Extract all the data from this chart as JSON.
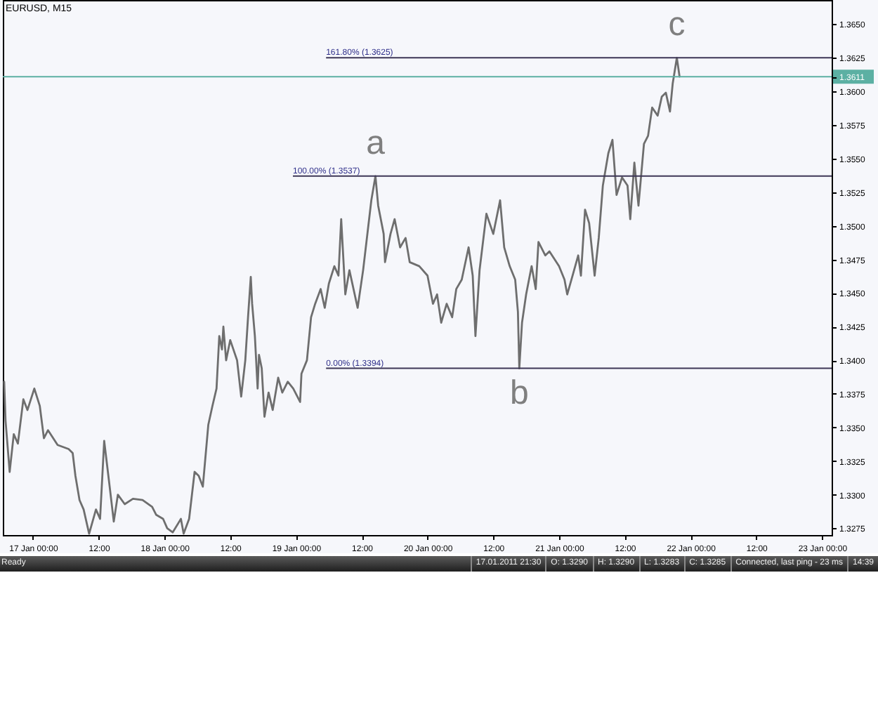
{
  "chart_data": {
    "type": "line",
    "title": "EURUSD, M15",
    "color": "#6e6e6e",
    "x": [
      "2011-01-16T18:45",
      "2011-01-16T19:00",
      "2011-01-16T19:45",
      "2011-01-16T20:30",
      "2011-01-16T21:15",
      "2011-01-16T22:15",
      "2011-01-16T23:00",
      "2011-01-17T00:15",
      "2011-01-17T01:15",
      "2011-01-17T02:00",
      "2011-01-17T02:45",
      "2011-01-17T04:30",
      "2011-01-17T06:30",
      "2011-01-17T07:15",
      "2011-01-17T07:45",
      "2011-01-17T08:30",
      "2011-01-17T09:15",
      "2011-01-17T10:15",
      "2011-01-17T11:30",
      "2011-01-17T12:15",
      "2011-01-17T13:00",
      "2011-01-17T14:00",
      "2011-01-17T14:45",
      "2011-01-17T15:30",
      "2011-01-17T16:45",
      "2011-01-17T18:15",
      "2011-01-17T20:00",
      "2011-01-17T21:45",
      "2011-01-17T22:30",
      "2011-01-17T23:45",
      "2011-01-18T00:30",
      "2011-01-18T01:30",
      "2011-01-18T03:00",
      "2011-01-18T03:30",
      "2011-01-18T04:30",
      "2011-01-18T05:30",
      "2011-01-18T06:15",
      "2011-01-18T07:00",
      "2011-01-18T08:00",
      "2011-01-18T08:45",
      "2011-01-18T09:30",
      "2011-01-18T10:00",
      "2011-01-18T10:30",
      "2011-01-18T10:45",
      "2011-01-18T11:15",
      "2011-01-18T12:00",
      "2011-01-18T13:15",
      "2011-01-18T14:00",
      "2011-01-18T14:45",
      "2011-01-18T15:15",
      "2011-01-18T15:45",
      "2011-01-18T16:00",
      "2011-01-18T16:30",
      "2011-01-18T17:00",
      "2011-01-18T17:15",
      "2011-01-18T17:45",
      "2011-01-18T18:15",
      "2011-01-18T19:00",
      "2011-01-18T19:45",
      "2011-01-18T20:45",
      "2011-01-18T21:30",
      "2011-01-18T22:30",
      "2011-01-18T23:30",
      "2011-01-19T00:45",
      "2011-01-19T01:00",
      "2011-01-19T02:00",
      "2011-01-19T02:45",
      "2011-01-19T03:30",
      "2011-01-19T04:30",
      "2011-01-19T05:15",
      "2011-01-19T06:00",
      "2011-01-19T07:00",
      "2011-01-19T07:45",
      "2011-01-19T08:15",
      "2011-01-19T09:00",
      "2011-01-19T09:45",
      "2011-01-19T11:15",
      "2011-01-19T12:15",
      "2011-01-19T13:45",
      "2011-01-19T14:30",
      "2011-01-19T15:00",
      "2011-01-19T16:00",
      "2011-01-19T16:15",
      "2011-01-19T17:15",
      "2011-01-19T18:00",
      "2011-01-19T19:00",
      "2011-01-19T20:00",
      "2011-01-19T20:45",
      "2011-01-19T22:30",
      "2011-01-20T00:00",
      "2011-01-20T01:00",
      "2011-01-20T01:45",
      "2011-01-20T02:30",
      "2011-01-20T03:30",
      "2011-01-20T04:30",
      "2011-01-20T05:15",
      "2011-01-20T06:15",
      "2011-01-20T07:30",
      "2011-01-20T08:15",
      "2011-01-20T08:45",
      "2011-01-20T09:30",
      "2011-01-20T10:45",
      "2011-01-20T12:00",
      "2011-01-20T13:15",
      "2011-01-20T14:00",
      "2011-01-20T15:00",
      "2011-01-20T16:00",
      "2011-01-20T16:30",
      "2011-01-20T16:45",
      "2011-01-20T17:15",
      "2011-01-20T18:00",
      "2011-01-20T19:00",
      "2011-01-20T19:45",
      "2011-01-20T20:15",
      "2011-01-20T21:30",
      "2011-01-20T22:15",
      "2011-01-21T00:00",
      "2011-01-21T01:00",
      "2011-01-21T01:30",
      "2011-01-21T02:45",
      "2011-01-21T03:30",
      "2011-01-21T04:00",
      "2011-01-21T04:45",
      "2011-01-21T05:30",
      "2011-01-21T06:30",
      "2011-01-21T07:15",
      "2011-01-21T08:00",
      "2011-01-21T09:00",
      "2011-01-21T09:45",
      "2011-01-21T10:30",
      "2011-01-21T11:30",
      "2011-01-21T12:30",
      "2011-01-21T13:00",
      "2011-01-21T13:45",
      "2011-01-21T14:30",
      "2011-01-21T15:30",
      "2011-01-21T16:15",
      "2011-01-21T17:00",
      "2011-01-21T18:00",
      "2011-01-21T18:45",
      "2011-01-21T19:30",
      "2011-01-21T20:15",
      "2011-01-21T20:45",
      "2011-01-21T21:30",
      "2011-01-21T22:00"
    ],
    "values": [
      1.3384,
      1.3355,
      1.3317,
      1.3345,
      1.3338,
      1.3371,
      1.3363,
      1.3379,
      1.3366,
      1.3342,
      1.3348,
      1.3337,
      1.3334,
      1.3331,
      1.3314,
      1.3296,
      1.3289,
      1.3271,
      1.3289,
      1.3282,
      1.334,
      1.3306,
      1.328,
      1.33,
      1.3293,
      1.3297,
      1.3296,
      1.3291,
      1.3285,
      1.3282,
      1.3275,
      1.3272,
      1.3282,
      1.3271,
      1.3282,
      1.3317,
      1.3314,
      1.3306,
      1.3352,
      1.3366,
      1.3379,
      1.3418,
      1.3408,
      1.3425,
      1.34,
      1.3415,
      1.34,
      1.3373,
      1.34,
      1.3432,
      1.3462,
      1.3442,
      1.3418,
      1.3379,
      1.3404,
      1.3394,
      1.3358,
      1.3376,
      1.3363,
      1.3387,
      1.3376,
      1.3384,
      1.3379,
      1.3369,
      1.339,
      1.34,
      1.3432,
      1.3442,
      1.3453,
      1.3439,
      1.3457,
      1.347,
      1.3463,
      1.3505,
      1.3449,
      1.3467,
      1.3439,
      1.3467,
      1.3519,
      1.3537,
      1.3515,
      1.3494,
      1.3473,
      1.3494,
      1.3505,
      1.3484,
      1.3491,
      1.3473,
      1.347,
      1.3463,
      1.3442,
      1.3449,
      1.3428,
      1.3442,
      1.3432,
      1.3453,
      1.346,
      1.3484,
      1.3463,
      1.3418,
      1.3467,
      1.3509,
      1.3494,
      1.3519,
      1.3484,
      1.347,
      1.346,
      1.3436,
      1.3394,
      1.3428,
      1.3449,
      1.347,
      1.3453,
      1.3488,
      1.3478,
      1.3481,
      1.347,
      1.346,
      1.3449,
      1.3467,
      1.3478,
      1.3463,
      1.3512,
      1.3502,
      1.3463,
      1.3491,
      1.353,
      1.3554,
      1.3564,
      1.3523,
      1.3536,
      1.353,
      1.3505,
      1.3547,
      1.3515,
      1.3561,
      1.3567,
      1.3588,
      1.3582,
      1.3596,
      1.3599,
      1.3585,
      1.3606,
      1.3625,
      1.3611
    ],
    "xlim": [
      "2011-01-16T18:30",
      "2011-01-23T01:45"
    ],
    "xticks": [
      {
        "value": "2011-01-17T00:00",
        "label": "17 Jan 00:00"
      },
      {
        "value": "2011-01-17T12:00",
        "label": "12:00"
      },
      {
        "value": "2011-01-18T00:00",
        "label": "18 Jan 00:00"
      },
      {
        "value": "2011-01-18T12:00",
        "label": "12:00"
      },
      {
        "value": "2011-01-19T00:00",
        "label": "19 Jan 00:00"
      },
      {
        "value": "2011-01-19T12:00",
        "label": "12:00"
      },
      {
        "value": "2011-01-20T00:00",
        "label": "20 Jan 00:00"
      },
      {
        "value": "2011-01-20T12:00",
        "label": "12:00"
      },
      {
        "value": "2011-01-21T00:00",
        "label": "21 Jan 00:00"
      },
      {
        "value": "2011-01-21T12:00",
        "label": "12:00"
      },
      {
        "value": "2011-01-22T00:00",
        "label": "22 Jan 00:00"
      },
      {
        "value": "2011-01-22T12:00",
        "label": "12:00"
      },
      {
        "value": "2011-01-23T00:00",
        "label": "23 Jan 00:00"
      }
    ],
    "ylim": [
      1.327,
      1.3668
    ],
    "yticks": [
      1.3275,
      {
        "value": 1.33,
        "label": "1.3300"
      },
      1.3325,
      {
        "value": 1.335,
        "label": "1.3350"
      },
      1.3375,
      {
        "value": 1.34,
        "label": "1.3400"
      },
      1.3425,
      {
        "value": 1.345,
        "label": "1.3450"
      },
      1.3475,
      {
        "value": 1.35,
        "label": "1.3500"
      },
      1.3525,
      {
        "value": 1.355,
        "label": "1.3550"
      },
      1.3575,
      {
        "value": 1.36,
        "label": "1.3600"
      },
      1.3611,
      1.3625,
      {
        "value": 1.365,
        "label": "1.3650"
      }
    ],
    "ref_lines": [
      {
        "axis": "y",
        "value": 1.3625,
        "label": "161.80% (1.3625)",
        "color": "#3d3656"
      },
      {
        "axis": "y",
        "value": 1.3537,
        "label": "100.00% (1.3537)",
        "color": "#3d3656"
      },
      {
        "axis": "y",
        "value": 1.3394,
        "label": "0.00% (1.3394)",
        "color": "#3d3656"
      },
      {
        "axis": "y",
        "value": 1.3611,
        "color": "#5cb0a3"
      }
    ],
    "annotations": [
      {
        "text": "a",
        "x": "2011-01-19T14:30",
        "y": 1.3537
      },
      {
        "text": "b",
        "x": "2011-01-20T16:45",
        "y": 1.3394
      },
      {
        "text": "c",
        "x": "2011-01-21T21:30",
        "y": 1.3625
      },
      "Ready",
      "17.01.2011 21:30",
      "O: 1.3290",
      "H: 1.3290",
      "L: 1.3283",
      "C: 1.3285",
      "Connected, last ping - 23 ms",
      "14:39"
    ]
  }
}
